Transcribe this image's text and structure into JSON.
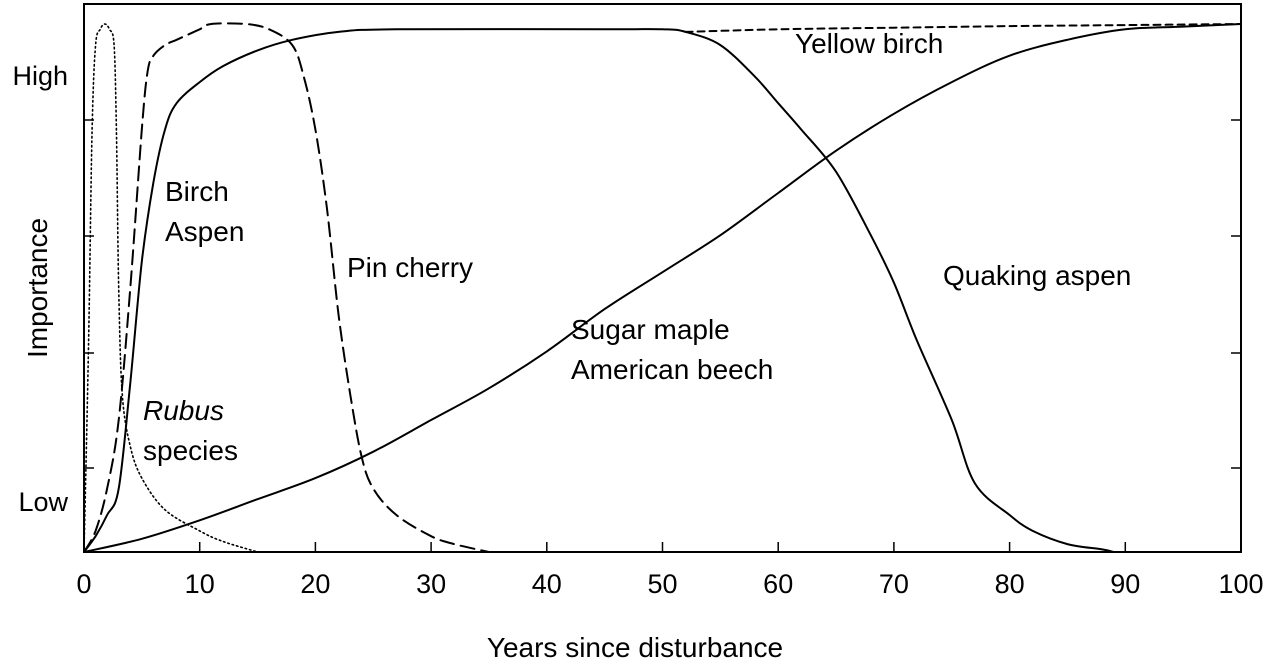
{
  "chart_data": {
    "type": "line",
    "title": "",
    "xlabel": "Years since disturbance",
    "ylabel": "Importance",
    "xlim": [
      0,
      100
    ],
    "ylim": [
      0,
      1
    ],
    "x_ticks": [
      0,
      10,
      20,
      30,
      40,
      50,
      60,
      70,
      80,
      90,
      100
    ],
    "y_tick_labels": [
      {
        "value": 0.87,
        "label": "High"
      },
      {
        "value": 0.09,
        "label": "Low"
      }
    ],
    "grid": false,
    "legend": "none (curves labeled directly)",
    "series": [
      {
        "label": [
          "Rubus",
          "species"
        ],
        "style": "dotted",
        "points": [
          [
            0,
            0
          ],
          [
            0.4,
            0.4
          ],
          [
            0.7,
            0.8
          ],
          [
            1.0,
            0.96
          ],
          [
            1.4,
            0.99
          ],
          [
            1.8,
            1.0
          ],
          [
            2.2,
            0.99
          ],
          [
            2.6,
            0.96
          ],
          [
            2.8,
            0.8
          ],
          [
            3.0,
            0.5
          ],
          [
            3.3,
            0.3
          ],
          [
            4.0,
            0.2
          ],
          [
            5.0,
            0.14
          ],
          [
            7.0,
            0.08
          ],
          [
            10.0,
            0.04
          ],
          [
            12.0,
            0.02
          ],
          [
            15.0,
            0.0
          ]
        ]
      },
      {
        "label": [
          "Pin cherry"
        ],
        "style": "long-dash",
        "points": [
          [
            0,
            0
          ],
          [
            1,
            0.04
          ],
          [
            2,
            0.12
          ],
          [
            3,
            0.25
          ],
          [
            4,
            0.5
          ],
          [
            5,
            0.8
          ],
          [
            5.5,
            0.91
          ],
          [
            6,
            0.94
          ],
          [
            7,
            0.96
          ],
          [
            8,
            0.97
          ],
          [
            9,
            0.98
          ],
          [
            10,
            0.99
          ],
          [
            11,
            1.0
          ],
          [
            14,
            1.0
          ],
          [
            16,
            0.99
          ],
          [
            18,
            0.96
          ],
          [
            19,
            0.9
          ],
          [
            20,
            0.8
          ],
          [
            21,
            0.65
          ],
          [
            22,
            0.45
          ],
          [
            23,
            0.3
          ],
          [
            24,
            0.18
          ],
          [
            25,
            0.12
          ],
          [
            27,
            0.07
          ],
          [
            30,
            0.03
          ],
          [
            32,
            0.015
          ],
          [
            35,
            0.0
          ]
        ]
      },
      {
        "label": [
          "Birch",
          "Aspen"
        ],
        "style": "solid",
        "points": [
          [
            0,
            0
          ],
          [
            1,
            0.03
          ],
          [
            2,
            0.07
          ],
          [
            3,
            0.12
          ],
          [
            4,
            0.32
          ],
          [
            5,
            0.55
          ],
          [
            6,
            0.7
          ],
          [
            7,
            0.8
          ],
          [
            8,
            0.85
          ],
          [
            10,
            0.89
          ],
          [
            12,
            0.92
          ],
          [
            15,
            0.95
          ],
          [
            18,
            0.97
          ],
          [
            22,
            0.985
          ],
          [
            27,
            0.99
          ],
          [
            45,
            0.99
          ],
          [
            50,
            0.99
          ],
          [
            52,
            0.985
          ],
          [
            55,
            0.96
          ],
          [
            58,
            0.9
          ],
          [
            60,
            0.85
          ],
          [
            62,
            0.8
          ],
          [
            65,
            0.72
          ],
          [
            68,
            0.6
          ],
          [
            70,
            0.51
          ],
          [
            72,
            0.4
          ],
          [
            75,
            0.25
          ],
          [
            77,
            0.13
          ],
          [
            80,
            0.07
          ],
          [
            82,
            0.04
          ],
          [
            85,
            0.015
          ],
          [
            88,
            0.005
          ],
          [
            89,
            0.0
          ]
        ]
      },
      {
        "label": [
          "Yellow birch"
        ],
        "style": "short-dash",
        "points": [
          [
            52,
            0.985
          ],
          [
            60,
            0.99
          ],
          [
            70,
            0.993
          ],
          [
            80,
            0.996
          ],
          [
            90,
            0.998
          ],
          [
            100,
            1.0
          ]
        ]
      },
      {
        "label": [
          "Sugar maple",
          "American beech"
        ],
        "style": "solid",
        "points": [
          [
            0,
            0
          ],
          [
            5,
            0.025
          ],
          [
            10,
            0.06
          ],
          [
            15,
            0.1
          ],
          [
            20,
            0.14
          ],
          [
            25,
            0.19
          ],
          [
            30,
            0.25
          ],
          [
            35,
            0.31
          ],
          [
            40,
            0.38
          ],
          [
            45,
            0.46
          ],
          [
            50,
            0.53
          ],
          [
            55,
            0.6
          ],
          [
            60,
            0.68
          ],
          [
            65,
            0.76
          ],
          [
            70,
            0.83
          ],
          [
            75,
            0.89
          ],
          [
            80,
            0.94
          ],
          [
            85,
            0.97
          ],
          [
            90,
            0.99
          ],
          [
            95,
            0.995
          ],
          [
            100,
            1.0
          ]
        ]
      },
      {
        "label": [
          "Quaking aspen"
        ],
        "style": "none"
      }
    ]
  }
}
